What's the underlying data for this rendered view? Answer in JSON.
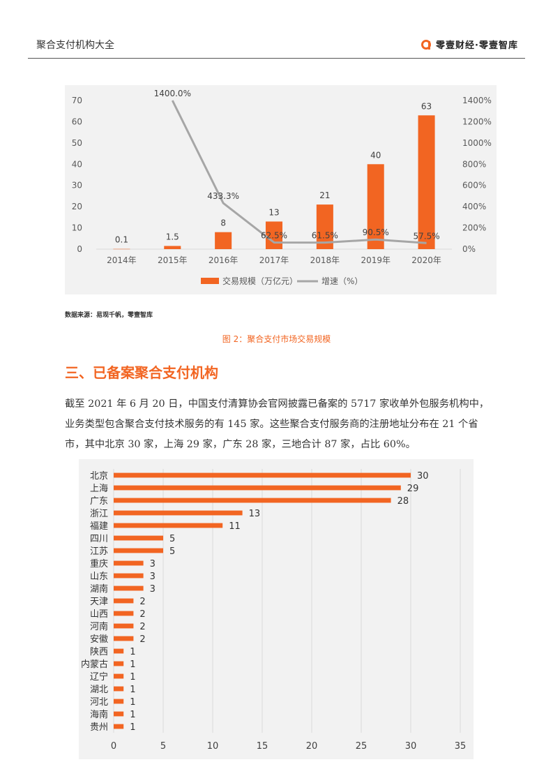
{
  "header": {
    "title": "聚合支付机构大全",
    "brand": "零壹财经·零壹智库",
    "brand_icon": "零壹财经-logo-icon",
    "accent": "#f26522"
  },
  "source_text": "数据来源：易观千帆，零壹智库",
  "figure_caption": "图 2：聚合支付市场交易规模",
  "section_heading": "三、已备案聚合支付机构",
  "paragraph": "截至 2021 年 6 月 20 日，中国支付清算协会官网披露已备案的 5717 家收单外包服务机构中，业务类型包含聚合支付技术服务的有 145 家。这些聚合支付服务商的注册地址分布在 21 个省市，其中北京 30 家，上海 29 家，广东 28 家，三地合计 87 家，占比 60%。",
  "chart_data": [
    {
      "type": "bar",
      "categories": [
        "2014年",
        "2015年",
        "2016年",
        "2017年",
        "2018年",
        "2019年",
        "2020年"
      ],
      "series": [
        {
          "name": "交易规模（万亿元）",
          "kind": "bar",
          "axis": "left",
          "color": "#f26522",
          "values": [
            0.1,
            1.5,
            8,
            13,
            21,
            40,
            63
          ],
          "labels": [
            "0.1",
            "1.5",
            "8",
            "13",
            "21",
            "40",
            "63"
          ]
        },
        {
          "name": "增速（%）",
          "kind": "line",
          "axis": "right",
          "color": "#a6a6a6",
          "values": [
            null,
            1400.0,
            433.3,
            62.5,
            61.5,
            90.5,
            57.5
          ],
          "labels": [
            "",
            "1400.0%",
            "433.3%",
            "62.5%",
            "61.5%",
            "90.5%",
            "57.5%"
          ]
        }
      ],
      "y_left": {
        "min": 0,
        "max": 70,
        "ticks": [
          "0",
          "10",
          "20",
          "30",
          "40",
          "50",
          "60",
          "70"
        ]
      },
      "y_right": {
        "min": 0,
        "max": 1400,
        "ticks": [
          "0%",
          "200%",
          "400%",
          "600%",
          "800%",
          "1000%",
          "1200%",
          "1400%"
        ]
      },
      "legend_position": "bottom",
      "grid": false
    },
    {
      "type": "bar",
      "orientation": "horizontal",
      "categories": [
        "北京",
        "上海",
        "广东",
        "浙江",
        "福建",
        "四川",
        "江苏",
        "重庆",
        "山东",
        "湖南",
        "天津",
        "山西",
        "河南",
        "安徽",
        "陕西",
        "内蒙古",
        "辽宁",
        "湖北",
        "河北",
        "海南",
        "贵州"
      ],
      "values": [
        30,
        29,
        28,
        13,
        11,
        5,
        5,
        3,
        3,
        3,
        2,
        2,
        2,
        2,
        1,
        1,
        1,
        1,
        1,
        1,
        1
      ],
      "labels": [
        "30",
        "29",
        "28",
        "13",
        "11",
        "5",
        "5",
        "3",
        "3",
        "3",
        "2",
        "2",
        "2",
        "2",
        "1",
        "1",
        "1",
        "1",
        "1",
        "1",
        "1"
      ],
      "color": "#f26522",
      "xlim": [
        0,
        35
      ],
      "x_ticks": [
        "0",
        "5",
        "10",
        "15",
        "20",
        "25",
        "30",
        "35"
      ],
      "grid": true
    }
  ]
}
